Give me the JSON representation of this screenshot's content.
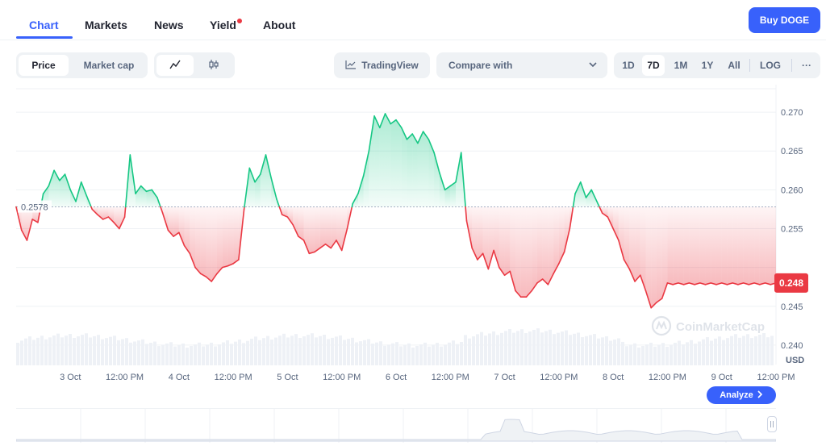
{
  "tabs": [
    {
      "label": "Chart"
    },
    {
      "label": "Markets"
    },
    {
      "label": "News"
    },
    {
      "label": "Yield"
    },
    {
      "label": "About"
    }
  ],
  "buy_button": "Buy DOGE",
  "toolbar": {
    "metric_tabs": [
      "Price",
      "Market cap"
    ],
    "tradingview_label": "TradingView",
    "compare_label": "Compare with",
    "ranges": [
      "1D",
      "7D",
      "1M",
      "1Y",
      "All",
      "LOG"
    ],
    "selected_range": "7D",
    "more_label": "···"
  },
  "icons": {
    "line_chart": "line-chart-icon",
    "candle_chart": "candlestick-icon",
    "tradingview": "tradingview-icon",
    "compare_chevron": "chevron-down-icon",
    "analyze_chevron": "chevron-right-icon",
    "watermark": "coinmarketcap-logo-icon"
  },
  "colors": {
    "accent": "#3861fb",
    "up": "#16c784",
    "down": "#ea3943"
  },
  "watermark_text": "CoinMarketCap",
  "analyze_label": "Analyze",
  "chart_data": {
    "type": "area",
    "title": "",
    "currency_label": "USD",
    "baseline_value": 0.2578,
    "baseline_label": "0.2578",
    "current_value": 0.248,
    "current_label": "0.248",
    "ylim": [
      0.2375,
      0.2725
    ],
    "y_ticks": [
      0.24,
      0.245,
      0.25,
      0.255,
      0.26,
      0.265,
      0.27
    ],
    "y_tick_labels": [
      "0.240",
      "0.245",
      "",
      "0.255",
      "0.260",
      "0.265",
      "0.270"
    ],
    "xlim": [
      0,
      7
    ],
    "x_ticks": [
      0.5,
      1.0,
      1.5,
      2.0,
      2.5,
      3.0,
      3.5,
      4.0,
      4.5,
      5.0,
      5.5,
      6.0,
      6.5,
      7.0
    ],
    "x_tick_labels": [
      "3 Oct",
      "12:00 PM",
      "4 Oct",
      "12:00 PM",
      "5 Oct",
      "12:00 PM",
      "6 Oct",
      "12:00 PM",
      "7 Oct",
      "12:00 PM",
      "8 Oct",
      "12:00 PM",
      "9 Oct",
      "12:00 PM"
    ],
    "x_unit": "days since 2 Oct 12:00 AM",
    "grid": true,
    "series": [
      {
        "x": [
          0.0,
          0.05,
          0.1,
          0.15,
          0.2,
          0.25,
          0.3,
          0.35,
          0.4,
          0.45,
          0.5,
          0.55,
          0.6,
          0.65,
          0.7,
          0.75,
          0.8,
          0.85,
          0.9,
          0.95,
          1.0,
          1.05,
          1.1,
          1.15,
          1.2,
          1.25,
          1.3,
          1.35,
          1.4,
          1.45,
          1.5,
          1.55,
          1.6,
          1.65,
          1.7,
          1.75,
          1.8,
          1.85,
          1.9,
          1.95,
          2.0,
          2.05,
          2.1,
          2.15,
          2.2,
          2.25,
          2.3,
          2.35,
          2.4,
          2.45,
          2.5,
          2.55,
          2.6,
          2.65,
          2.7,
          2.75,
          2.8,
          2.85,
          2.9,
          2.95,
          3.0,
          3.05,
          3.1,
          3.15,
          3.2,
          3.25,
          3.3,
          3.35,
          3.4,
          3.45,
          3.5,
          3.55,
          3.6,
          3.65,
          3.7,
          3.75,
          3.8,
          3.85,
          3.9,
          3.95,
          4.0,
          4.05,
          4.1,
          4.15,
          4.2,
          4.25,
          4.3,
          4.35,
          4.4,
          4.45,
          4.5,
          4.55,
          4.6,
          4.65,
          4.7,
          4.75,
          4.8,
          4.85,
          4.9,
          4.95,
          5.0,
          5.05,
          5.1,
          5.15,
          5.2,
          5.25,
          5.3,
          5.35,
          5.4,
          5.45,
          5.5,
          5.55,
          5.6,
          5.65,
          5.7,
          5.75,
          5.8,
          5.85,
          5.9,
          5.95,
          6.0,
          6.05,
          6.1,
          6.15,
          6.2,
          6.25,
          6.3,
          6.35,
          6.4,
          6.45,
          6.5,
          6.55,
          6.6,
          6.65,
          6.7,
          6.75,
          6.8,
          6.85,
          6.9,
          6.95,
          7.0
        ],
        "y": [
          0.2578,
          0.2548,
          0.2535,
          0.2562,
          0.2558,
          0.2595,
          0.2605,
          0.2625,
          0.2612,
          0.262,
          0.26,
          0.2585,
          0.261,
          0.2592,
          0.2575,
          0.2568,
          0.2562,
          0.2565,
          0.2558,
          0.255,
          0.2565,
          0.2645,
          0.2595,
          0.2605,
          0.2598,
          0.26,
          0.259,
          0.257,
          0.2548,
          0.254,
          0.2545,
          0.2528,
          0.2518,
          0.25,
          0.2492,
          0.2488,
          0.2482,
          0.2492,
          0.25,
          0.2502,
          0.2505,
          0.251,
          0.2575,
          0.2628,
          0.261,
          0.262,
          0.2645,
          0.2615,
          0.2588,
          0.2568,
          0.2565,
          0.2555,
          0.254,
          0.2535,
          0.2518,
          0.252,
          0.2525,
          0.253,
          0.2525,
          0.2535,
          0.2522,
          0.255,
          0.2582,
          0.2595,
          0.2618,
          0.265,
          0.2695,
          0.268,
          0.2698,
          0.2685,
          0.269,
          0.268,
          0.2665,
          0.2672,
          0.266,
          0.2675,
          0.2665,
          0.2648,
          0.2622,
          0.26,
          0.2605,
          0.261,
          0.2648,
          0.256,
          0.2525,
          0.251,
          0.2518,
          0.2498,
          0.2522,
          0.25,
          0.249,
          0.2495,
          0.247,
          0.2462,
          0.2462,
          0.247,
          0.248,
          0.2485,
          0.2478,
          0.2492,
          0.2505,
          0.252,
          0.255,
          0.2595,
          0.261,
          0.259,
          0.26,
          0.2585,
          0.257,
          0.2565,
          0.255,
          0.2535,
          0.251,
          0.2498,
          0.2482,
          0.249,
          0.247,
          0.2448,
          0.2455,
          0.246,
          0.248,
          0.2478,
          0.248,
          0.2478,
          0.248,
          0.2478,
          0.248,
          0.2478,
          0.248,
          0.2478,
          0.248,
          0.2478,
          0.248,
          0.2478,
          0.248,
          0.2478,
          0.248,
          0.2478,
          0.248,
          0.2478,
          0.248
        ]
      }
    ]
  }
}
